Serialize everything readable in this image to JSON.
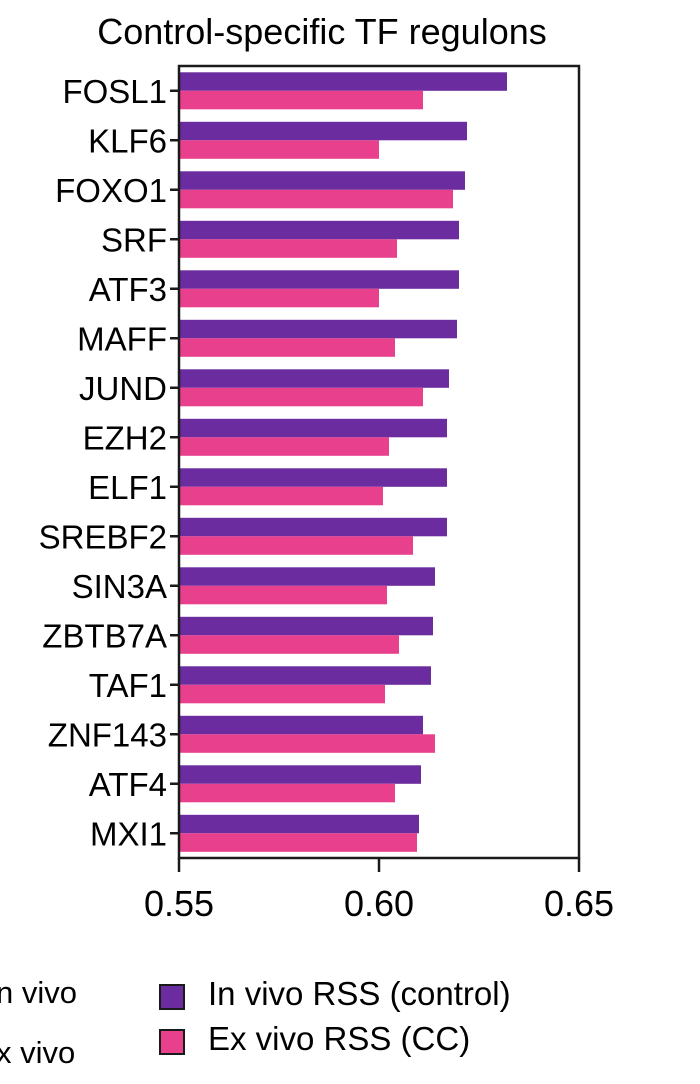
{
  "chart_data": {
    "type": "bar",
    "orientation": "horizontal",
    "title": "Control-specific TF regulons",
    "xlabel": "",
    "ylabel": "",
    "xlim": [
      0.55,
      0.65
    ],
    "xticks": [
      "0.55",
      "0.60",
      "0.65"
    ],
    "grid": false,
    "legend_position": "bottom-right",
    "categories": [
      "FOSL1",
      "KLF6",
      "FOXO1",
      "SRF",
      "ATF3",
      "MAFF",
      "JUND",
      "EZH2",
      "ELF1",
      "SREBF2",
      "SIN3A",
      "ZBTB7A",
      "TAF1",
      "ZNF143",
      "ATF4",
      "MXI1"
    ],
    "series": [
      {
        "name": "In vivo RSS (control)",
        "color": "#6a2c9e",
        "values": [
          0.632,
          0.622,
          0.6215,
          0.62,
          0.62,
          0.6195,
          0.6175,
          0.617,
          0.617,
          0.617,
          0.614,
          0.6135,
          0.613,
          0.611,
          0.6105,
          0.61
        ]
      },
      {
        "name": "Ex vivo RSS (CC)",
        "color": "#e8408d",
        "values": [
          0.611,
          0.6,
          0.6185,
          0.6045,
          0.6,
          0.604,
          0.611,
          0.6025,
          0.601,
          0.6085,
          0.602,
          0.605,
          0.6015,
          0.614,
          0.604,
          0.6095
        ]
      }
    ],
    "legend_partial_labels": [
      "n vivo",
      "x vivo"
    ]
  }
}
